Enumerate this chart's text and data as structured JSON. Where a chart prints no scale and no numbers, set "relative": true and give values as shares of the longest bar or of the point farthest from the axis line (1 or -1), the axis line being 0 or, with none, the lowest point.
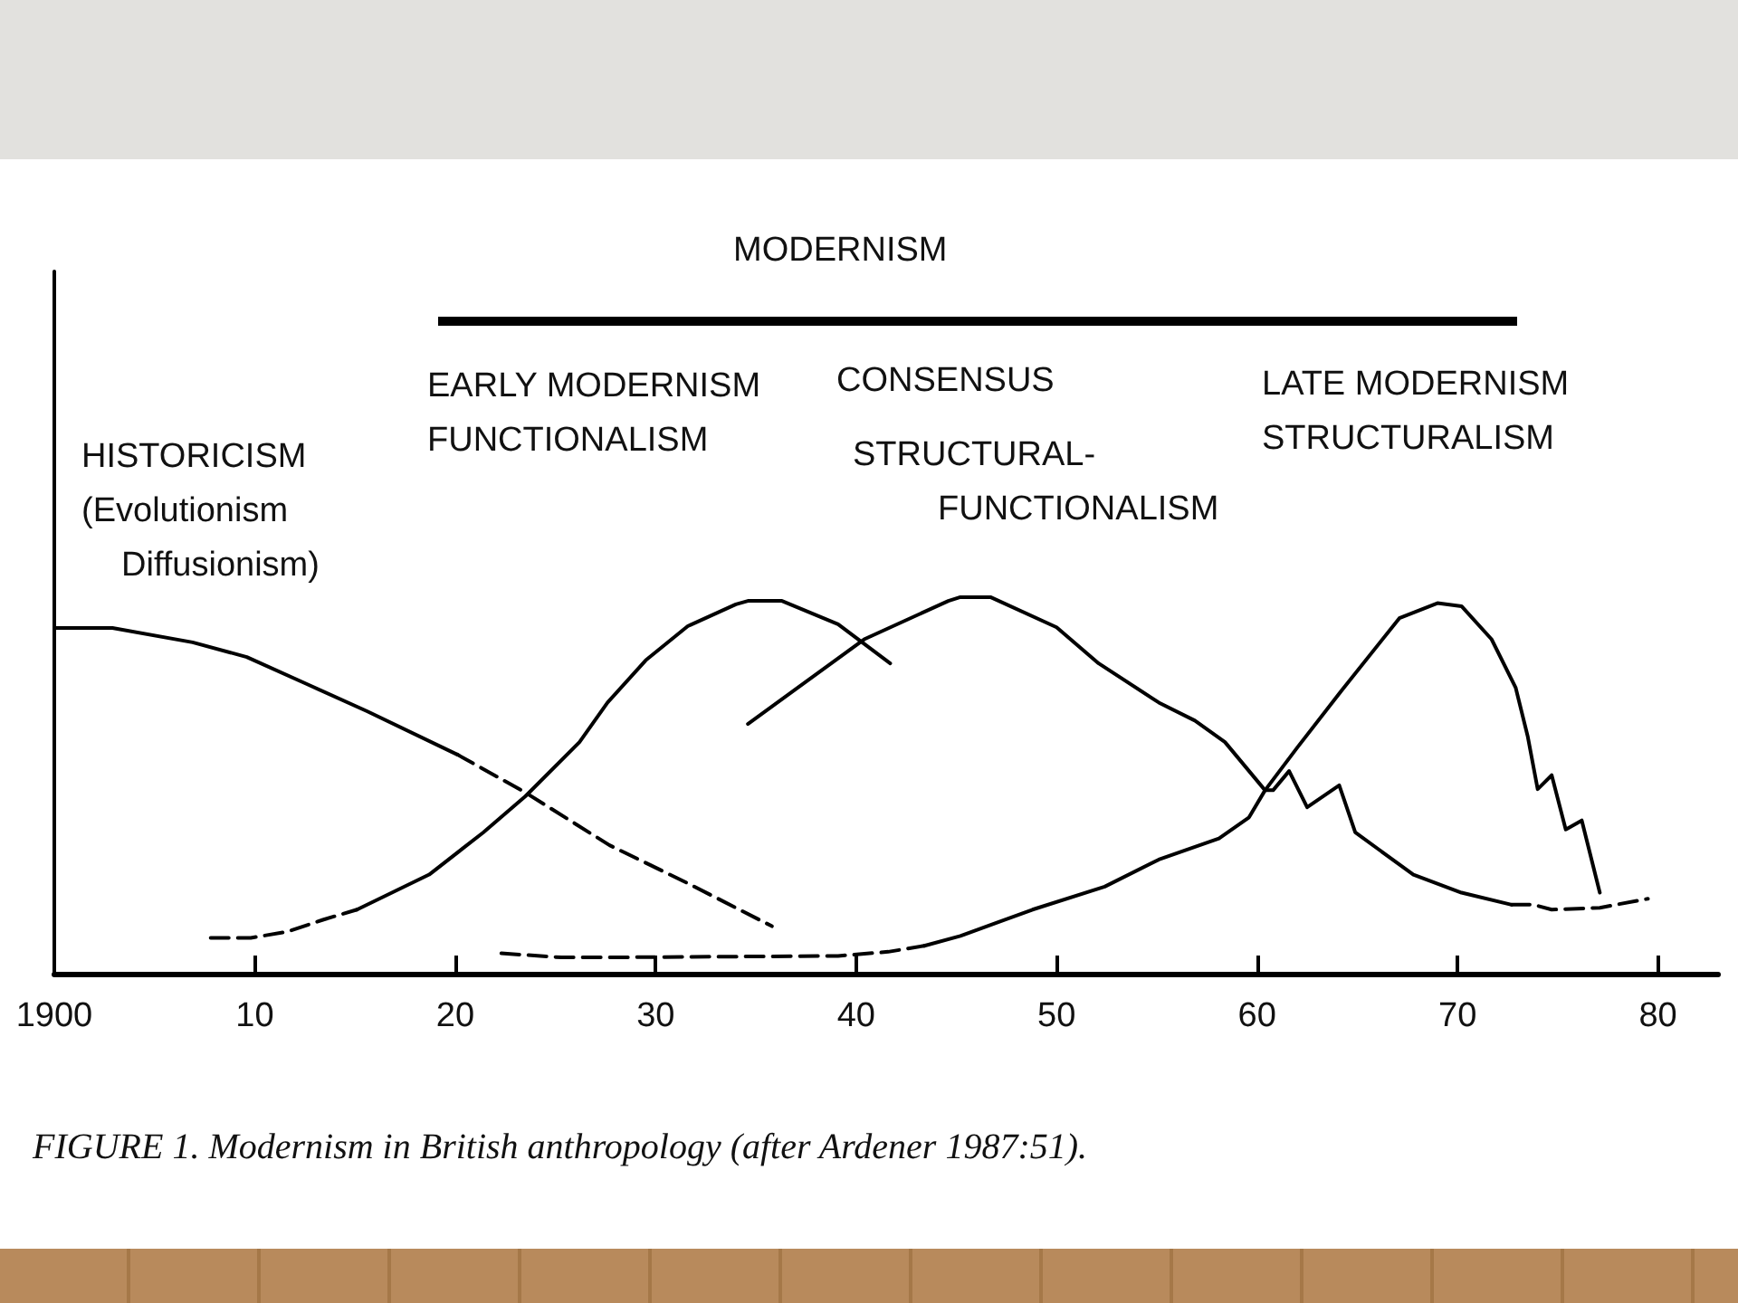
{
  "chart_data": {
    "type": "line",
    "relative": true,
    "color": "#000000",
    "marker": "none",
    "xlim": [
      1900,
      1983
    ],
    "xticks": [
      {
        "value": 1900,
        "label": "1900"
      },
      {
        "value": 1910,
        "label": "10"
      },
      {
        "value": 1920,
        "label": "20"
      },
      {
        "value": 1930,
        "label": "30"
      },
      {
        "value": 1940,
        "label": "40"
      },
      {
        "value": 1950,
        "label": "50"
      },
      {
        "value": 1960,
        "label": "60"
      },
      {
        "value": 1970,
        "label": "70"
      },
      {
        "value": 1980,
        "label": "80"
      }
    ],
    "series": [
      {
        "line_style": "solid",
        "x": [
          1900,
          1902.9,
          1906.9,
          1909.6,
          1912.6,
          1915.6,
          1920.1
        ],
        "values": [
          0.918,
          0.918,
          0.88,
          0.841,
          0.769,
          0.697,
          0.582
        ]
      },
      {
        "line_style": "dashed",
        "x": [
          1920.1,
          1923.5,
          1927.7,
          1931.6,
          1935.8
        ],
        "values": [
          0.582,
          0.481,
          0.341,
          0.24,
          0.126
        ]
      },
      {
        "line_style": "dashed",
        "x": [
          1907.8,
          1909.8,
          1911.6,
          1913.4,
          1915.1
        ],
        "values": [
          0.095,
          0.095,
          0.111,
          0.143,
          0.17
        ]
      },
      {
        "line_style": "solid",
        "x": [
          1915.1,
          1918.7,
          1921.4,
          1923.5,
          1926.2,
          1927.6,
          1929.5,
          1931.6,
          1934,
          1934.6,
          1936.3,
          1939.1,
          1941.7
        ],
        "values": [
          0.17,
          0.263,
          0.375,
          0.471,
          0.615,
          0.72,
          0.832,
          0.923,
          0.981,
          0.99,
          0.99,
          0.928,
          0.824
        ]
      },
      {
        "line_style": "solid",
        "x": [
          1934.6,
          1940.4,
          1944.6,
          1945.2,
          1946.7,
          1950,
          1952.1,
          1955.1,
          1956.9,
          1958.4,
          1960.4,
          1960.8,
          1961.6,
          1962.5,
          1964.1,
          1964.9,
          1967.8,
          1970.2,
          1972.7
        ],
        "values": [
          0.663,
          0.888,
          0.99,
          1,
          1,
          0.92,
          0.824,
          0.72,
          0.672,
          0.615,
          0.487,
          0.487,
          0.538,
          0.442,
          0.5,
          0.375,
          0.263,
          0.215,
          0.183
        ]
      },
      {
        "line_style": "dashed",
        "x": [
          1972.7,
          1973.8,
          1974.7,
          1977.1,
          1979.5
        ],
        "values": [
          0.183,
          0.183,
          0.17,
          0.175,
          0.199
        ]
      },
      {
        "line_style": "dashed",
        "x": [
          1922.3,
          1925.3,
          1927.1,
          1939.1,
          1941.6,
          1943.4
        ],
        "values": [
          0.054,
          0.043,
          0.043,
          0.047,
          0.058,
          0.074
        ]
      },
      {
        "line_style": "solid",
        "x": [
          1943.4,
          1945.2,
          1948.8,
          1952.4,
          1955.1,
          1958.1,
          1959.6,
          1960.4,
          1962,
          1964.1,
          1967.1,
          1969,
          1970.2,
          1971.7,
          1972.9,
          1973.5,
          1974,
          1974.7,
          1975.4,
          1976.2,
          1977.1
        ],
        "values": [
          0.074,
          0.1,
          0.17,
          0.231,
          0.303,
          0.359,
          0.415,
          0.487,
          0.6,
          0.744,
          0.944,
          0.984,
          0.976,
          0.888,
          0.76,
          0.631,
          0.49,
          0.527,
          0.383,
          0.407,
          0.215
        ]
      }
    ],
    "annotations": [
      "MODERNISM",
      "EARLY MODERNISM\nFUNCTIONALISM",
      "CONSENSUS",
      "STRUCTURAL-\nFUNCTIONALISM",
      "LATE MODERNISM\nSTRUCTURALISM",
      "HISTORICISM\n(Evolutionism\nDiffusionism)",
      "FIGURE 1. Modernism in British anthropology (after Ardener 1987:51)."
    ]
  }
}
